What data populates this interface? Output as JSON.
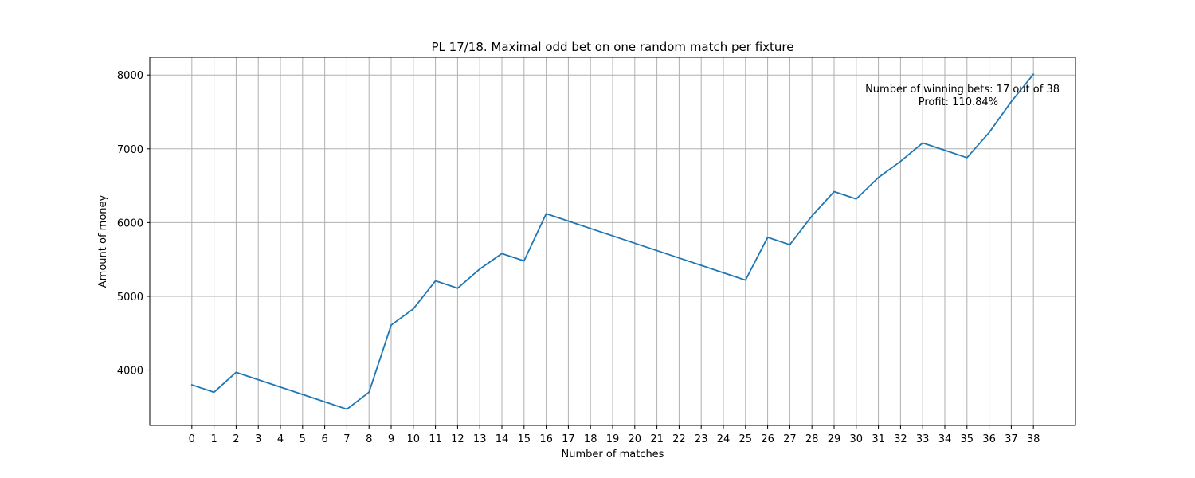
{
  "chart_data": {
    "type": "line",
    "title": "PL 17/18. Maximal odd bet on one random match per fixture",
    "xlabel": "Number of matches",
    "ylabel": "Amount of money",
    "xlim": [
      -1.9,
      39.9
    ],
    "ylim": [
      3250,
      8240
    ],
    "xticks": [
      0,
      1,
      2,
      3,
      4,
      5,
      6,
      7,
      8,
      9,
      10,
      11,
      12,
      13,
      14,
      15,
      16,
      17,
      18,
      19,
      20,
      21,
      22,
      23,
      24,
      25,
      26,
      27,
      28,
      29,
      30,
      31,
      32,
      33,
      34,
      35,
      36,
      37,
      38
    ],
    "yticks": [
      4000,
      5000,
      6000,
      7000,
      8000
    ],
    "grid": true,
    "series": [
      {
        "color": "#1f77b4",
        "x": [
          0,
          1,
          2,
          3,
          4,
          5,
          6,
          7,
          8,
          9,
          10,
          11,
          12,
          13,
          14,
          15,
          16,
          17,
          18,
          19,
          20,
          21,
          22,
          23,
          24,
          25,
          26,
          27,
          28,
          29,
          30,
          31,
          32,
          33,
          34,
          35,
          36,
          37,
          38
        ],
        "values": [
          3800,
          3700,
          3970,
          3870,
          3770,
          3670,
          3570,
          3470,
          3700,
          4610,
          4830,
          5210,
          5110,
          5370,
          5580,
          5480,
          6120,
          6020,
          5920,
          5820,
          5720,
          5620,
          5520,
          5420,
          5320,
          5220,
          5800,
          5700,
          6090,
          6420,
          6320,
          6610,
          6830,
          7080,
          6980,
          6880,
          7220,
          7640,
          8010
        ]
      }
    ],
    "annotations": [
      "Number of winning bets: 17 out of 38",
      "Profit: 110.84%"
    ]
  }
}
